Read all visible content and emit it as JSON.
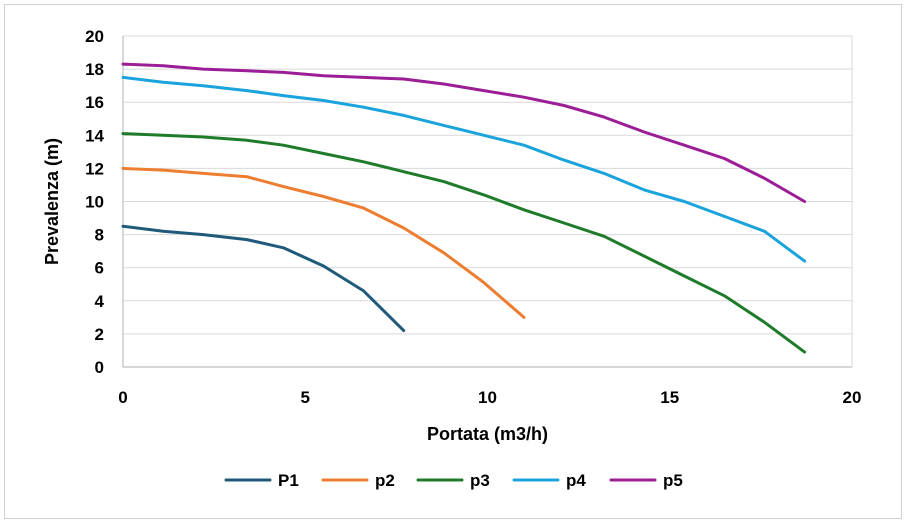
{
  "chart_data": {
    "type": "line",
    "title": "",
    "xlabel": "Portata (m3/h)",
    "ylabel": "Prevalenza (m)",
    "xlim": [
      0,
      20
    ],
    "ylim": [
      0,
      20
    ],
    "x_ticks": [
      0,
      5,
      10,
      15,
      20
    ],
    "y_ticks": [
      0,
      2,
      4,
      6,
      8,
      10,
      12,
      14,
      16,
      18,
      20
    ],
    "x_tick_labels": [
      "0",
      "5",
      "10",
      "15",
      "20"
    ],
    "y_tick_labels": [
      "0",
      "2",
      "4",
      "6",
      "8",
      "10",
      "12",
      "14",
      "16",
      "18",
      "20"
    ],
    "grid": "horizontal",
    "legend_position": "bottom",
    "series": [
      {
        "name": "P1",
        "color": "#1f5a7a",
        "x": [
          0,
          1.1,
          2.2,
          3.4,
          4.4,
          5.5,
          6.6,
          7.7
        ],
        "y": [
          8.5,
          8.2,
          8.0,
          7.7,
          7.2,
          6.1,
          4.6,
          2.2
        ]
      },
      {
        "name": "p2",
        "color": "#ed7d31",
        "x": [
          0,
          1.1,
          2.2,
          3.4,
          4.4,
          5.5,
          6.6,
          7.7,
          8.8,
          9.9,
          11.0
        ],
        "y": [
          12.0,
          11.9,
          11.7,
          11.5,
          10.9,
          10.3,
          9.6,
          8.4,
          6.9,
          5.1,
          3.0
        ]
      },
      {
        "name": "p3",
        "color": "#1e7b2a",
        "x": [
          0,
          1.1,
          2.2,
          3.4,
          4.4,
          5.5,
          6.6,
          7.7,
          8.8,
          9.9,
          11.0,
          12.1,
          13.2,
          14.3,
          15.4,
          16.5,
          17.6,
          18.7
        ],
        "y": [
          14.1,
          14.0,
          13.9,
          13.7,
          13.4,
          12.9,
          12.4,
          11.8,
          11.2,
          10.4,
          9.5,
          8.7,
          7.9,
          6.7,
          5.5,
          4.3,
          2.7,
          0.9
        ]
      },
      {
        "name": "p4",
        "color": "#1aa3dc",
        "x": [
          0,
          1.1,
          2.2,
          3.4,
          4.4,
          5.5,
          6.6,
          7.7,
          8.8,
          9.9,
          11.0,
          12.1,
          13.2,
          14.3,
          15.4,
          16.5,
          17.6,
          18.7
        ],
        "y": [
          17.5,
          17.2,
          17.0,
          16.7,
          16.4,
          16.1,
          15.7,
          15.2,
          14.6,
          14.0,
          13.4,
          12.5,
          11.7,
          10.7,
          10.0,
          9.1,
          8.2,
          6.4
        ]
      },
      {
        "name": "p5",
        "color": "#9b1e96",
        "x": [
          0,
          1.1,
          2.2,
          3.4,
          4.4,
          5.5,
          6.6,
          7.7,
          8.8,
          9.9,
          11.0,
          12.1,
          13.2,
          14.3,
          15.4,
          16.5,
          17.6,
          18.7
        ],
        "y": [
          18.3,
          18.2,
          18.0,
          17.9,
          17.8,
          17.6,
          17.5,
          17.4,
          17.1,
          16.7,
          16.3,
          15.8,
          15.1,
          14.2,
          13.4,
          12.6,
          11.4,
          10.0
        ]
      }
    ]
  }
}
